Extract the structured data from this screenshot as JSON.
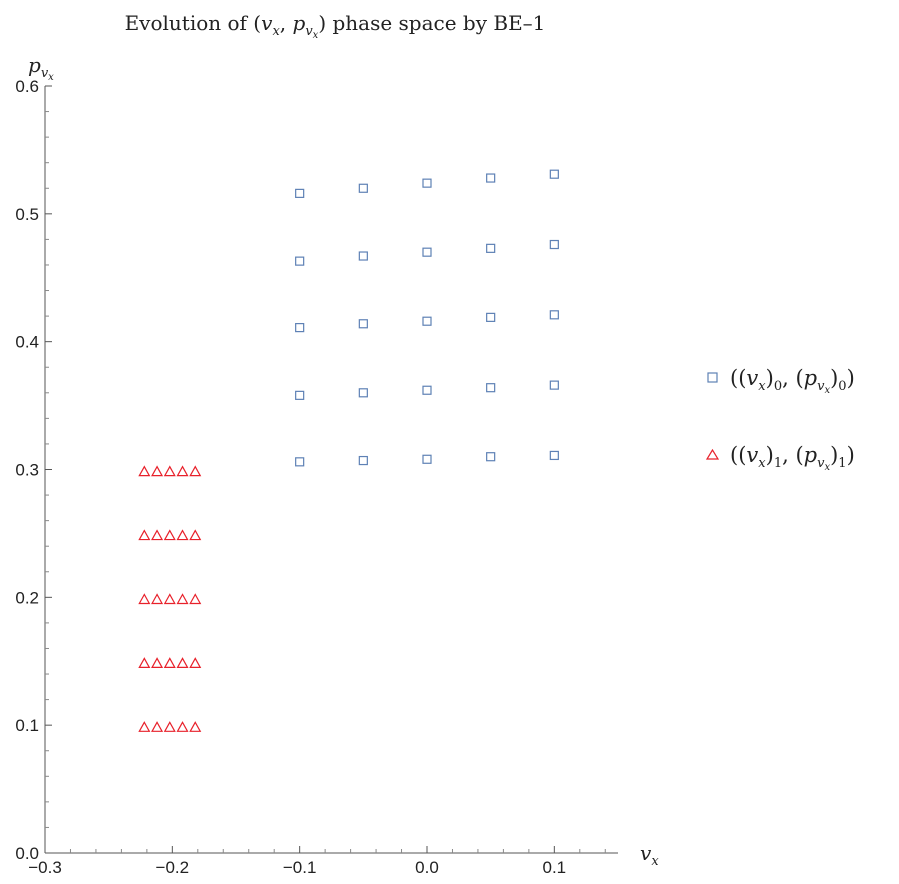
{
  "chart_data": {
    "type": "scatter",
    "title": {
      "prefix": "Evolution of (",
      "var1": "v",
      "var1_sub": "x",
      "sep": ", ",
      "var2": "p",
      "var2_sub": "v",
      "var2_subsub": "x",
      "suffix": ") phase space by BE–1"
    },
    "xlabel": {
      "main": "v",
      "sub": "x"
    },
    "ylabel": {
      "main": "p",
      "sub": "v",
      "subsub": "x"
    },
    "xlim": [
      -0.3,
      0.15
    ],
    "ylim": [
      0.0,
      0.6
    ],
    "x_ticks": [
      -0.3,
      -0.2,
      -0.1,
      0.0,
      0.1
    ],
    "x_tick_labels": [
      "−0.3",
      "−0.2",
      "−0.1",
      "0.0",
      "0.1"
    ],
    "y_ticks": [
      0.0,
      0.1,
      0.2,
      0.3,
      0.4,
      0.5,
      0.6
    ],
    "y_tick_labels": [
      "0.0",
      "0.1",
      "0.2",
      "0.3",
      "0.4",
      "0.5",
      "0.6"
    ],
    "grid": false,
    "legend_position": "right",
    "series": [
      {
        "name": "((v_x)_0, (p_{v_x})_0)",
        "legend": {
          "open": "((",
          "v": "v",
          "vsub": "x",
          "mid1": ")",
          "idx": "0",
          "mid2": ", (",
          "p": "p",
          "psub": "v",
          "psubsub": "x",
          "end1": ")",
          "idx2": "0",
          "end2": ")"
        },
        "marker": "square",
        "color": "#5e81b5",
        "points": [
          [
            -0.1,
            0.306
          ],
          [
            -0.05,
            0.307
          ],
          [
            0.0,
            0.308
          ],
          [
            0.05,
            0.31
          ],
          [
            0.1,
            0.311
          ],
          [
            -0.1,
            0.358
          ],
          [
            -0.05,
            0.36
          ],
          [
            0.0,
            0.362
          ],
          [
            0.05,
            0.364
          ],
          [
            0.1,
            0.366
          ],
          [
            -0.1,
            0.411
          ],
          [
            -0.05,
            0.414
          ],
          [
            0.0,
            0.416
          ],
          [
            0.05,
            0.419
          ],
          [
            0.1,
            0.421
          ],
          [
            -0.1,
            0.463
          ],
          [
            -0.05,
            0.467
          ],
          [
            0.0,
            0.47
          ],
          [
            0.05,
            0.473
          ],
          [
            0.1,
            0.476
          ],
          [
            -0.1,
            0.516
          ],
          [
            -0.05,
            0.52
          ],
          [
            0.0,
            0.524
          ],
          [
            0.05,
            0.528
          ],
          [
            0.1,
            0.531
          ]
        ]
      },
      {
        "name": "((v_x)_1, (p_{v_x})_1)",
        "legend": {
          "open": "((",
          "v": "v",
          "vsub": "x",
          "mid1": ")",
          "idx": "1",
          "mid2": ", (",
          "p": "p",
          "psub": "v",
          "psubsub": "x",
          "end1": ")",
          "idx2": "1",
          "end2": ")"
        },
        "marker": "triangle",
        "color": "#e8212b",
        "points": [
          [
            -0.222,
            0.098
          ],
          [
            -0.212,
            0.098
          ],
          [
            -0.202,
            0.098
          ],
          [
            -0.192,
            0.098
          ],
          [
            -0.182,
            0.098
          ],
          [
            -0.222,
            0.148
          ],
          [
            -0.212,
            0.148
          ],
          [
            -0.202,
            0.148
          ],
          [
            -0.192,
            0.148
          ],
          [
            -0.182,
            0.148
          ],
          [
            -0.222,
            0.198
          ],
          [
            -0.212,
            0.198
          ],
          [
            -0.202,
            0.198
          ],
          [
            -0.192,
            0.198
          ],
          [
            -0.182,
            0.198
          ],
          [
            -0.222,
            0.248
          ],
          [
            -0.212,
            0.248
          ],
          [
            -0.202,
            0.248
          ],
          [
            -0.192,
            0.248
          ],
          [
            -0.182,
            0.248
          ],
          [
            -0.222,
            0.298
          ],
          [
            -0.212,
            0.298
          ],
          [
            -0.202,
            0.298
          ],
          [
            -0.192,
            0.298
          ],
          [
            -0.182,
            0.298
          ]
        ]
      }
    ]
  }
}
